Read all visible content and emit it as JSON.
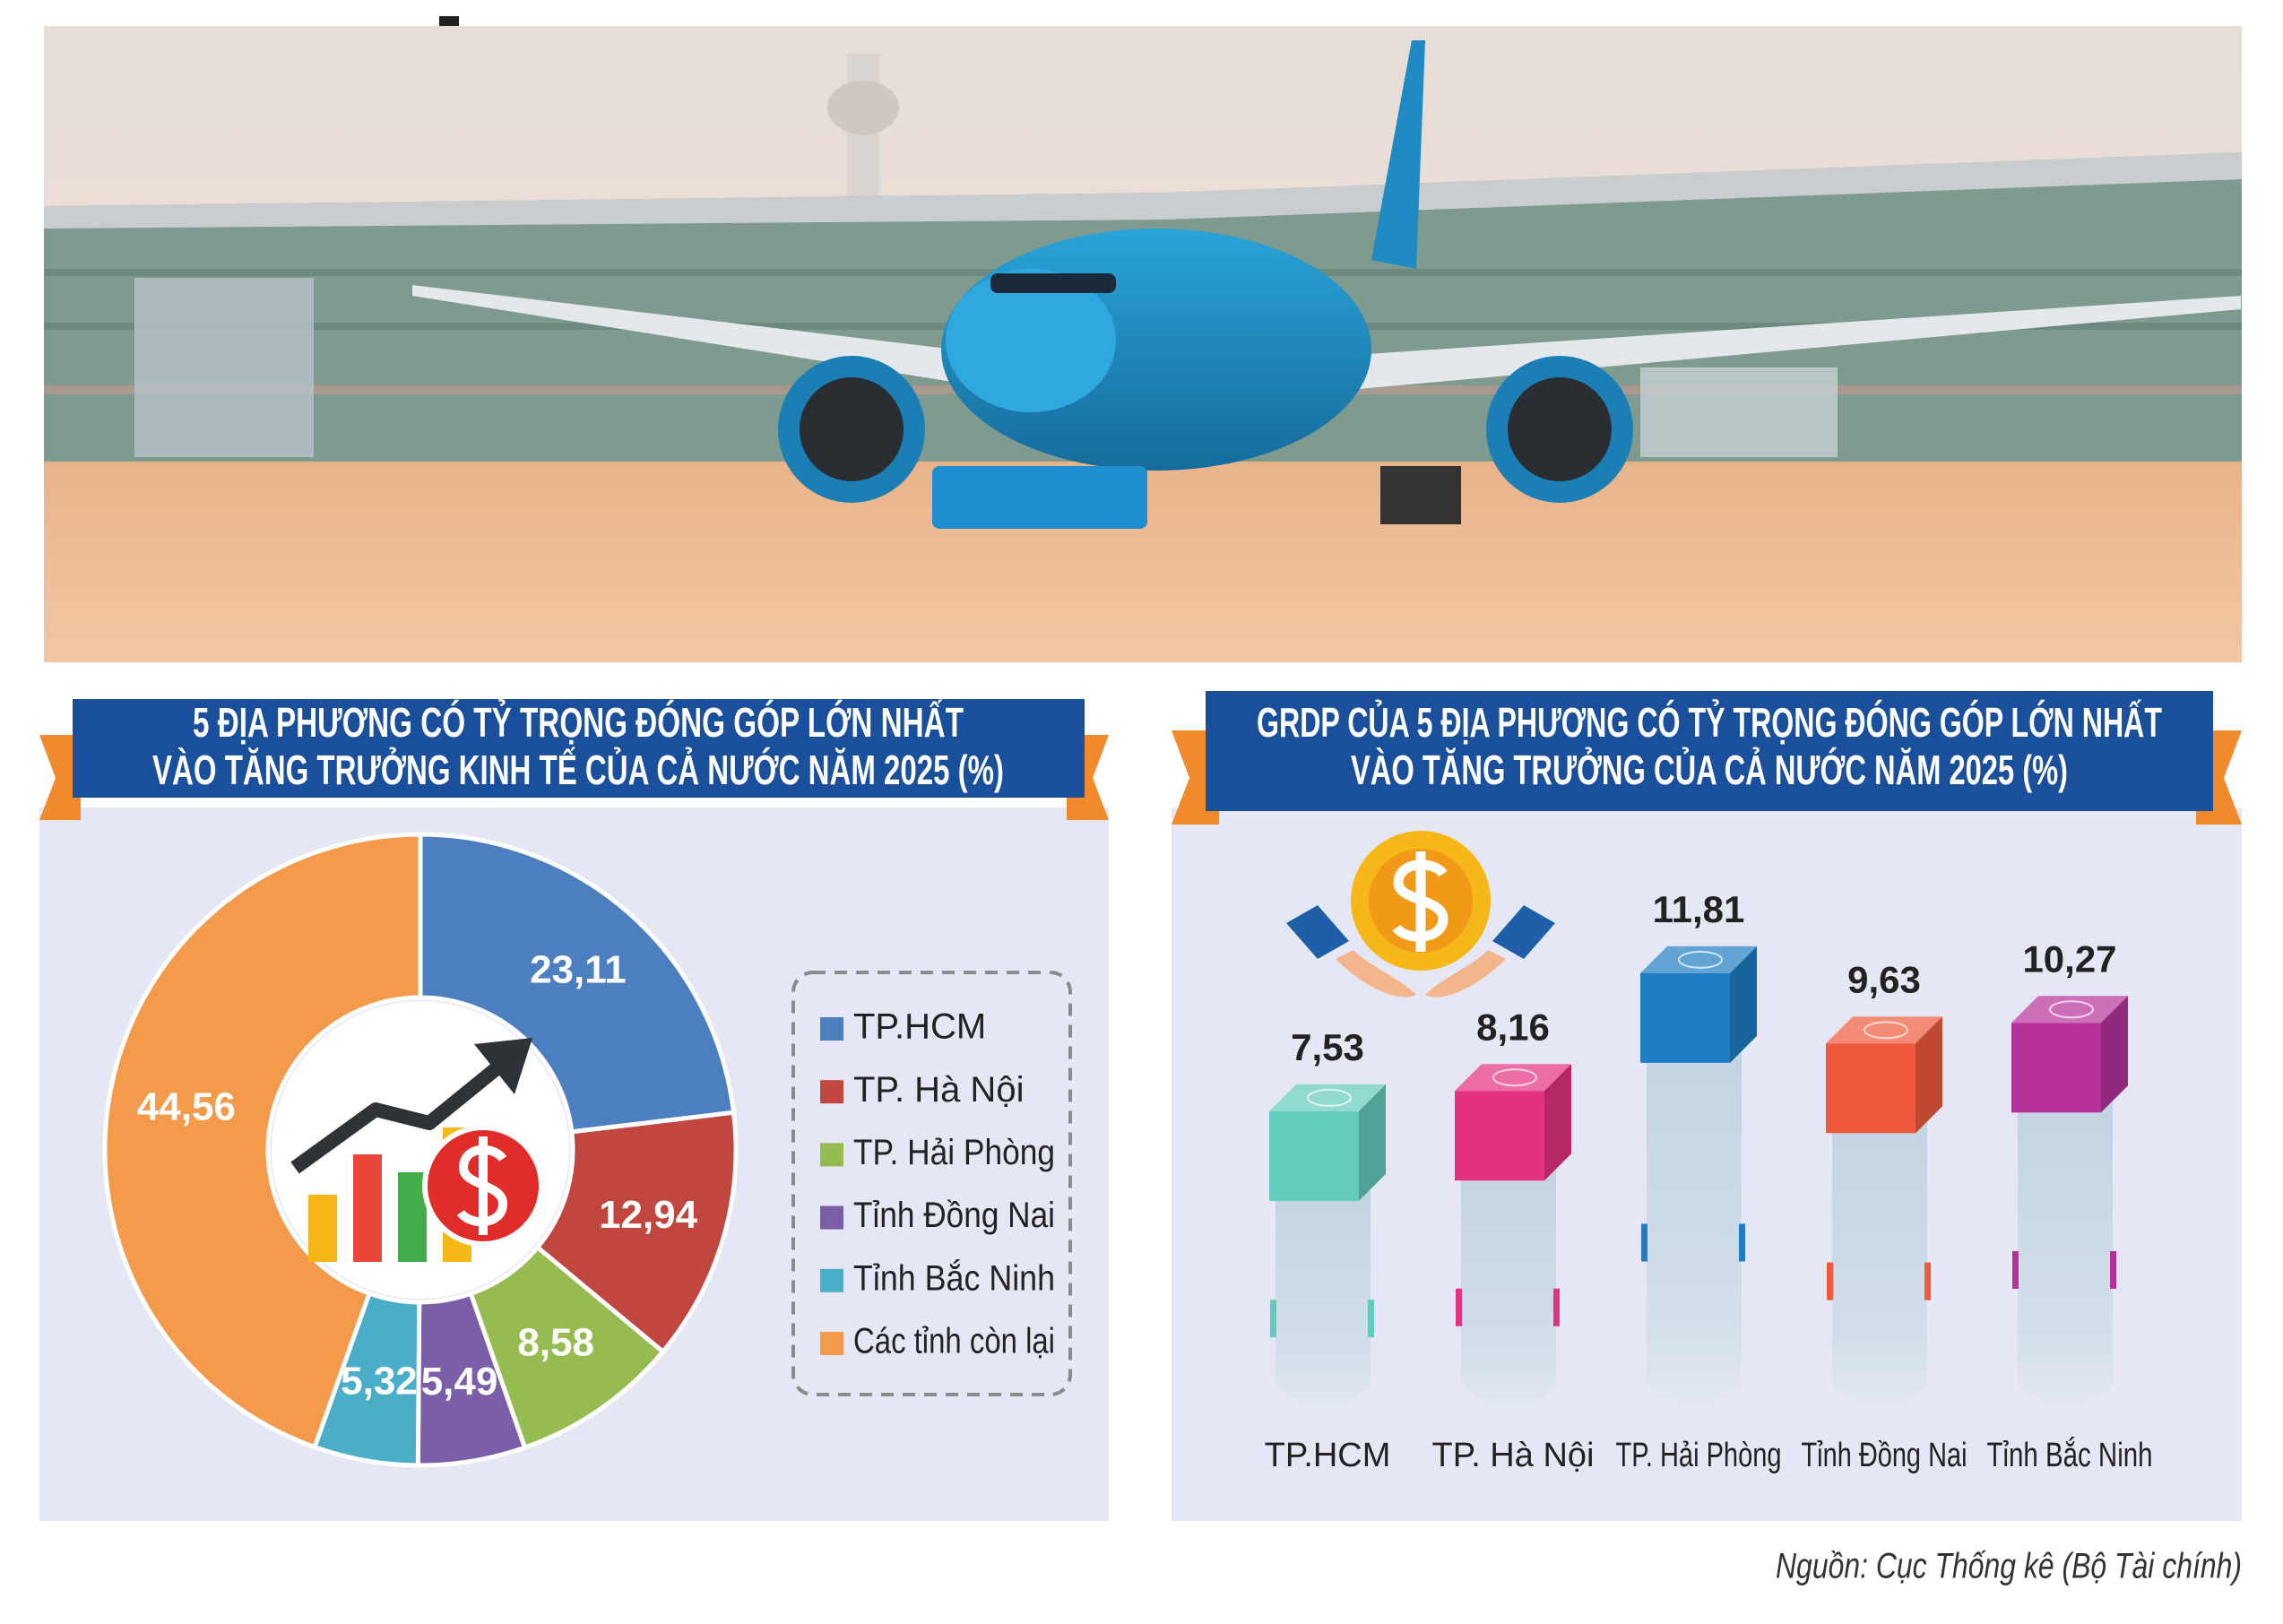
{
  "chart_data": [
    {
      "type": "pie",
      "donut": true,
      "title": [
        "5 ĐỊA PHƯƠNG CÓ TỶ TRỌNG ĐÓNG GÓP LỚN NHẤT",
        "VÀO TĂNG TRƯỞNG KINH TẾ CỦA CẢ NƯỚC NĂM 2025 (%)"
      ],
      "categories": [
        "TP.HCM",
        "TP. Hà Nội",
        "TP. Hải Phòng",
        "Tỉnh Đồng Nai",
        "Tỉnh Bắc Ninh",
        "Các tỉnh còn lại"
      ],
      "values": [
        23.11,
        12.94,
        8.58,
        5.49,
        5.32,
        44.56
      ],
      "value_labels": [
        "23,11",
        "12,94",
        "8,58",
        "5,49",
        "5,32",
        "44,56"
      ],
      "colors": [
        "#4b7fc0",
        "#c1463f",
        "#96bb50",
        "#7b5ea8",
        "#4aaec9",
        "#f39a4b"
      ],
      "legend": "right"
    },
    {
      "type": "bar",
      "title": [
        "GRDP CỦA 5 ĐỊA PHƯƠNG CÓ TỶ TRỌNG ĐÓNG GÓP LỚN NHẤT",
        "VÀO TĂNG TRƯỞNG CỦA CẢ NƯỚC NĂM 2025 (%)"
      ],
      "categories": [
        "TP.HCM",
        "TP. Hà Nội",
        "TP. Hải Phòng",
        "Tỉnh Đồng Nai",
        "Tỉnh Bắc Ninh"
      ],
      "values": [
        7.53,
        8.16,
        11.81,
        9.63,
        10.27
      ],
      "value_labels": [
        "7,53",
        "8,16",
        "11,81",
        "9,63",
        "10,27"
      ],
      "colors": [
        "#63cbbb",
        "#e3327f",
        "#1f7ec3",
        "#f05a3c",
        "#b6329a"
      ]
    }
  ],
  "source": "Nguồn: Cục Thống kê (Bộ Tài chính)"
}
